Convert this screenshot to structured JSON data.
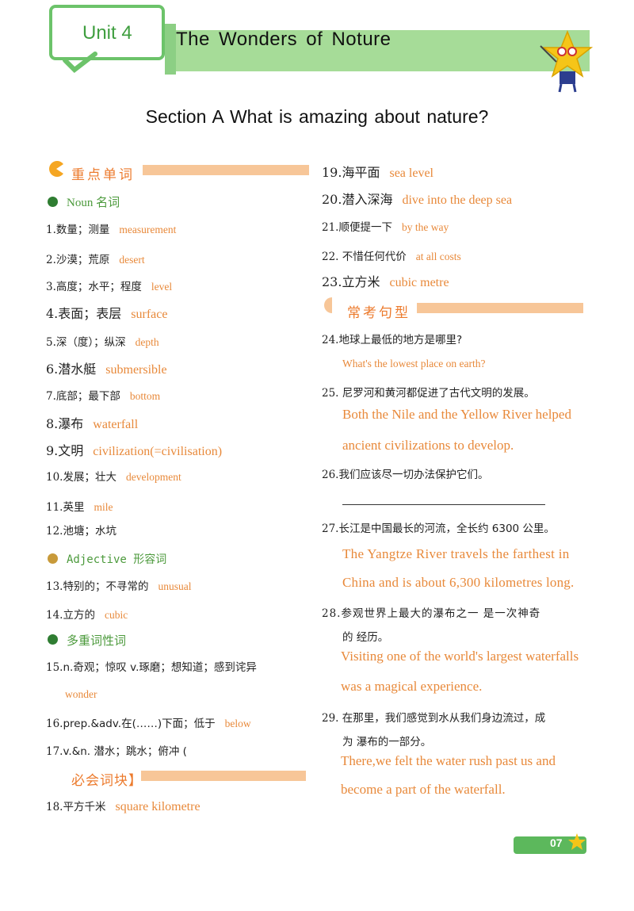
{
  "header": {
    "unit_label": "Unit 4",
    "title": "The  Wonders  of  Noture",
    "section_title": "Section A What is amazing about nature?"
  },
  "left": {
    "vocab_header": "重点单词",
    "noun_label": "Noun   名词",
    "adj_label": "Adjective   形容词",
    "multi_label": "多重词性词",
    "must_header": "必会词块】",
    "items": [
      {
        "n": "1.",
        "cn": "数量；测量",
        "en": "measurement"
      },
      {
        "n": "2.",
        "cn": "沙漠；荒原",
        "en": "desert"
      },
      {
        "n": "3.",
        "cn": "高度；水平；程度",
        "en": "level"
      },
      {
        "n": "4.",
        "cn": "表面；表层",
        "en": "surface"
      },
      {
        "n": "5.",
        "cn": "深（度）；纵深",
        "en": "depth"
      },
      {
        "n": "6.",
        "cn": "潜水艇",
        "en": "submersible"
      },
      {
        "n": "7.",
        "cn": "底部；最下部",
        "en": "bottom"
      },
      {
        "n": "8.",
        "cn": "瀑布",
        "en": "waterfall"
      },
      {
        "n": "9.",
        "cn": "文明",
        "en": "civilization(=civilisation)"
      },
      {
        "n": "10.",
        "cn": "发展；壮大",
        "en": "development"
      },
      {
        "n": "11.",
        "cn": "英里",
        "en": "mile"
      },
      {
        "n": "12.",
        "cn": "池塘；水坑",
        "en": ""
      },
      {
        "n": "13.",
        "cn": "特别的；不寻常的",
        "en": "unusual"
      },
      {
        "n": "14.",
        "cn": "立方的",
        "en": "cubic"
      },
      {
        "n": "15.",
        "cn": "n.奇观；惊叹    v.琢磨；想知道；感到诧异",
        "en": ""
      },
      {
        "n": "",
        "cn": "",
        "en": "wonder"
      },
      {
        "n": "16.",
        "cn": "prep.&adv.在(……)下面；低于",
        "en": "below"
      },
      {
        "n": "17.",
        "cn": "v.&n.  潜水；跳水；俯冲   (",
        "en": ""
      },
      {
        "n": "18.",
        "cn": "平方千米",
        "en": "square kilometre"
      }
    ]
  },
  "right": {
    "sentence_header": "常考句型",
    "items": [
      {
        "n": "19.",
        "cn": "海平面",
        "en": "sea level"
      },
      {
        "n": "20.",
        "cn": "潜入深海",
        "en": "dive into the deep sea"
      },
      {
        "n": "21.",
        "cn": "顺便提一下",
        "en": "by   the   way"
      },
      {
        "n": "22.",
        "cn": "不惜任何代价",
        "en": "at   all   costs"
      },
      {
        "n": "23.",
        "cn": "立方米",
        "en": "cubic metre"
      }
    ],
    "sentences": [
      {
        "n": "24.",
        "cn": "地球上最低的地方是哪里?",
        "en": [
          "What's   the   lowest   place   on   earth?"
        ]
      },
      {
        "n": "25.",
        "cn": "尼罗河和黄河都促进了古代文明的发展。",
        "en": [
          "Both the Nile and the Yellow River helped",
          "ancient civilizations to develop."
        ]
      },
      {
        "n": "26.",
        "cn": "我们应该尽一切办法保护它们。",
        "en": []
      },
      {
        "n": "27.",
        "cn": "长江是中国最长的河流，全长约 6300 公里。",
        "en": [
          "The Yangtze River travels the farthest in",
          "China and is about 6,300 kilometres long."
        ]
      },
      {
        "n": "28.",
        "cn": "参观世界上最大的瀑布之一  是一次神奇",
        "cn2": "的  经历。",
        "en": [
          "Visiting one of the world's largest waterfalls",
          "was a magical experience."
        ]
      },
      {
        "n": "29.",
        "cn": "在那里，我们感觉到水从我们身边流过，成",
        "cn2": "为  瀑布的一部分。",
        "en": [
          "There,we  felt  the  water  rush  past  us  and",
          "become a part of the waterfall."
        ]
      }
    ]
  },
  "footer": {
    "page": "07"
  },
  "colors": {
    "green": "#6cc36a",
    "orange": "#e8893a",
    "bar": "#f7c698"
  }
}
